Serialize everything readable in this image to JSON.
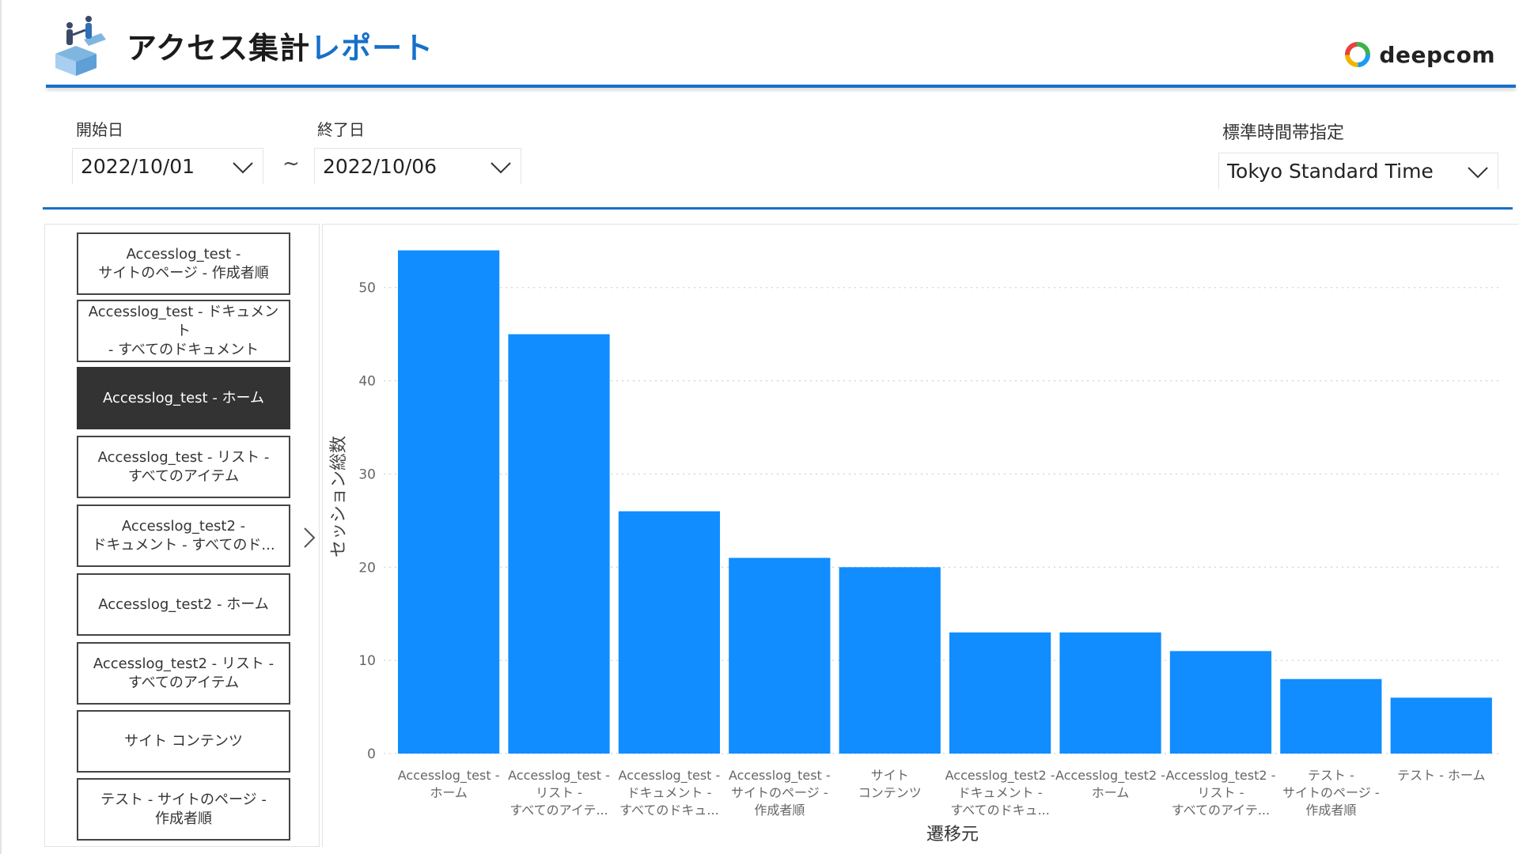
{
  "header": {
    "title_part1": "アクセス集計",
    "title_part2": "レポート",
    "brand": "deepcom",
    "title_color": "#1b1b1b",
    "accent_color": "#1670c9"
  },
  "filters": {
    "start_label": "開始日",
    "start_value": "2022/10/01",
    "range_separator": "~",
    "end_label": "終了日",
    "end_value": "2022/10/06",
    "timezone_label": "標準時間帯指定",
    "timezone_value": "Tokyo Standard Time"
  },
  "slicer": {
    "items": [
      {
        "label": "Accesslog_test -\nサイトのページ - 作成者順",
        "selected": false
      },
      {
        "label": "Accesslog_test - ドキュメント\n- すべてのドキュメント",
        "selected": false
      },
      {
        "label": "Accesslog_test - ホーム",
        "selected": true
      },
      {
        "label": "Accesslog_test - リスト -\nすべてのアイテム",
        "selected": false
      },
      {
        "label": "Accesslog_test2 -\nドキュメント - すべてのド...",
        "selected": false
      },
      {
        "label": "Accesslog_test2 - ホーム",
        "selected": false
      },
      {
        "label": "Accesslog_test2 - リスト -\nすべてのアイテム",
        "selected": false
      },
      {
        "label": "サイト コンテンツ",
        "selected": false
      },
      {
        "label": "テスト - サイトのページ -\n作成者順",
        "selected": false
      }
    ],
    "selected_color": "#333333"
  },
  "chart_data": {
    "type": "bar",
    "xlabel": "遷移元",
    "ylabel": "セッション総数",
    "ylim": [
      0,
      56
    ],
    "yticks": [
      0,
      10,
      20,
      30,
      40,
      50
    ],
    "grid": true,
    "bar_color": "#118dff",
    "categories": [
      [
        "Accesslog_test -",
        "ホーム"
      ],
      [
        "Accesslog_test -",
        "リスト -",
        "すべてのアイテ..."
      ],
      [
        "Accesslog_test -",
        "ドキュメント -",
        "すべてのドキュ..."
      ],
      [
        "Accesslog_test -",
        "サイトのページ -",
        "作成者順"
      ],
      [
        "サイト",
        "コンテンツ"
      ],
      [
        "Accesslog_test2 -",
        "ドキュメント -",
        "すべてのドキュ..."
      ],
      [
        "Accesslog_test2 -",
        "ホーム"
      ],
      [
        "Accesslog_test2 -",
        "リスト -",
        "すべてのアイテ..."
      ],
      [
        "テスト -",
        "サイトのページ -",
        "作成者順"
      ],
      [
        "テスト - ホーム"
      ]
    ],
    "values": [
      54,
      45,
      26,
      21,
      20,
      13,
      13,
      11,
      8,
      6
    ]
  }
}
